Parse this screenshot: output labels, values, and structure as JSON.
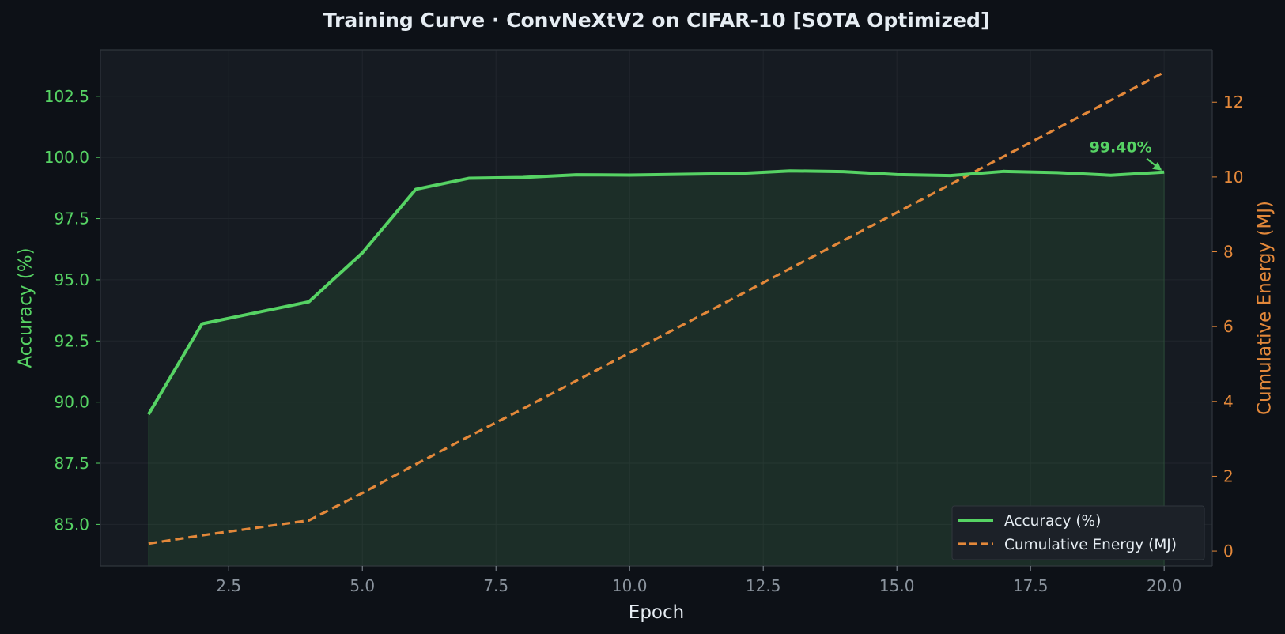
{
  "colors": {
    "background": "#0d1117",
    "plot_background": "#161b22",
    "accuracy": "#56d364",
    "energy": "#e3883a",
    "text": "#e6edf3",
    "tick_text": "#8b949e",
    "grid": "#21262d"
  },
  "chart_data": {
    "type": "line",
    "title": "Training Curve  ·  ConvNeXtV2 on CIFAR-10  [SOTA Optimized]",
    "xlabel": "Epoch",
    "ylabel_left": "Accuracy (%)",
    "ylabel_right": "Cumulative Energy (MJ)",
    "xlim": [
      0.1,
      20.9
    ],
    "ylim_left": [
      83.3,
      104.4
    ],
    "ylim_right": [
      -0.4,
      13.4
    ],
    "x_ticks": [
      2.5,
      5.0,
      7.5,
      10.0,
      12.5,
      15.0,
      17.5,
      20.0
    ],
    "x_tick_labels": [
      "2.5",
      "5.0",
      "7.5",
      "10.0",
      "12.5",
      "15.0",
      "17.5",
      "20.0"
    ],
    "y_left_ticks": [
      85.0,
      87.5,
      90.0,
      92.5,
      95.0,
      97.5,
      100.0,
      102.5
    ],
    "y_left_tick_labels": [
      "85.0",
      "87.5",
      "90.0",
      "92.5",
      "95.0",
      "97.5",
      "100.0",
      "102.5"
    ],
    "y_right_ticks": [
      0,
      2,
      4,
      6,
      8,
      10,
      12
    ],
    "y_right_tick_labels": [
      "0",
      "2",
      "4",
      "6",
      "8",
      "10",
      "12"
    ],
    "grid": true,
    "legend_position": "lower-right",
    "series": [
      {
        "name": "Accuracy (%)",
        "axis": "left",
        "style": "solid",
        "fill": true,
        "x": [
          1,
          2,
          3,
          4,
          5,
          6,
          7,
          8,
          9,
          10,
          11,
          12,
          13,
          14,
          15,
          16,
          17,
          18,
          19,
          20
        ],
        "values": [
          89.5,
          93.2,
          93.65,
          94.1,
          96.1,
          98.7,
          99.15,
          99.18,
          99.29,
          99.28,
          99.31,
          99.34,
          99.45,
          99.42,
          99.3,
          99.26,
          99.43,
          99.38,
          99.27,
          99.4
        ]
      },
      {
        "name": "Cumulative Energy (MJ)",
        "axis": "right",
        "style": "dashed",
        "fill": false,
        "x": [
          1,
          2,
          3,
          4,
          5,
          6,
          7,
          8,
          9,
          10,
          11,
          12,
          13,
          14,
          15,
          16,
          17,
          18,
          19,
          20
        ],
        "values": [
          0.2,
          0.42,
          0.62,
          0.82,
          1.55,
          2.32,
          3.07,
          3.8,
          4.55,
          5.3,
          6.05,
          6.8,
          7.55,
          8.3,
          9.05,
          9.8,
          10.55,
          11.3,
          12.05,
          12.8
        ]
      }
    ],
    "annotation": {
      "text": "99.40%",
      "x": 20,
      "y": 99.4
    }
  }
}
